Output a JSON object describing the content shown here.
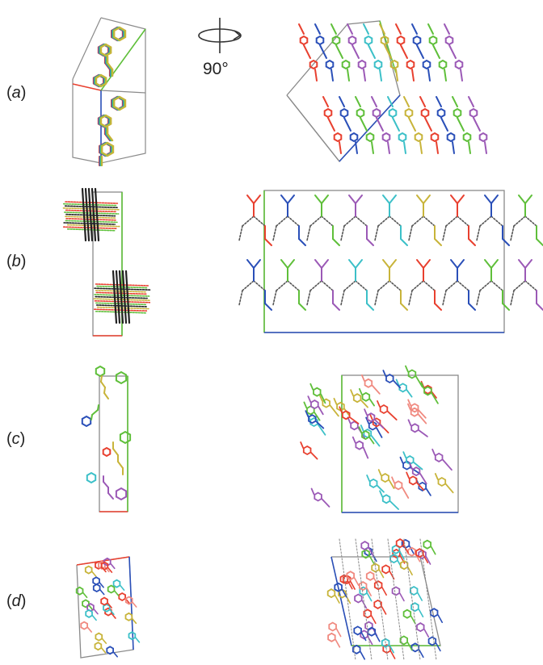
{
  "figure": {
    "rotation_label": "90°",
    "panels": [
      {
        "id": "a",
        "label_open": "(",
        "label_letter": "a",
        "label_close": ")"
      },
      {
        "id": "b",
        "label_open": "(",
        "label_letter": "b",
        "label_close": ")"
      },
      {
        "id": "c",
        "label_open": "(",
        "label_letter": "c",
        "label_close": ")"
      },
      {
        "id": "d",
        "label_open": "(",
        "label_letter": "d",
        "label_close": ")"
      }
    ]
  },
  "colors": {
    "axis_a": "#e8402f",
    "axis_b": "#5fbf3a",
    "axis_c": "#2a4fb8",
    "cell": "#8a8a8a",
    "molecule_palette": [
      "#e8402f",
      "#2a4fb8",
      "#5fbf3a",
      "#9b59b6",
      "#3cc0c8",
      "#c8b43a",
      "#f08a80",
      "#666666"
    ]
  }
}
